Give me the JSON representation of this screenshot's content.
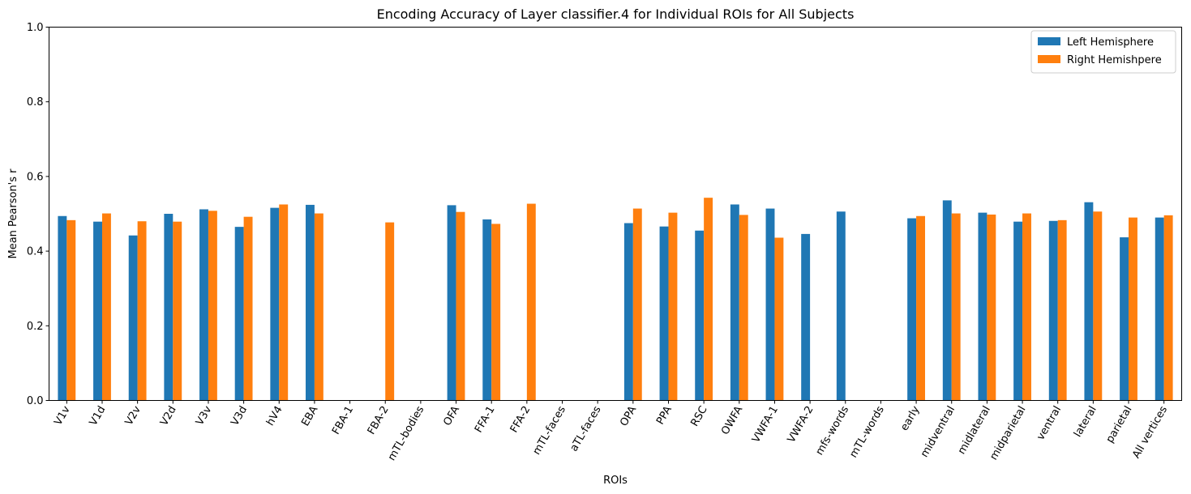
{
  "chart_data": {
    "type": "bar",
    "title": "Encoding Accuracy of Layer classifier.4 for Individual ROIs for All Subjects",
    "xlabel": "ROIs",
    "ylabel": "Mean Pearson's r",
    "ylim": [
      0,
      1.0
    ],
    "yticks": [
      "0.0",
      "0.2",
      "0.4",
      "0.6",
      "0.8",
      "1.0"
    ],
    "grid": false,
    "legend_position": "top-right",
    "categories": [
      "V1v",
      "V1d",
      "V2v",
      "V2d",
      "V3v",
      "V3d",
      "hV4",
      "EBA",
      "FBA-1",
      "FBA-2",
      "mTL-bodies",
      "OFA",
      "FFA-1",
      "FFA-2",
      "mTL-faces",
      "aTL-faces",
      "OPA",
      "PPA",
      "RSC",
      "OWFA",
      "VWFA-1",
      "VWFA-2",
      "mfs-words",
      "mTL-words",
      "early",
      "midventral",
      "midlateral",
      "midparietal",
      "ventral",
      "lateral",
      "parietal",
      "All vertices"
    ],
    "series": [
      {
        "name": "Left Hemisphere",
        "color": "#1f77b4",
        "values": [
          0.494,
          0.479,
          0.442,
          0.5,
          0.512,
          0.465,
          0.516,
          0.524,
          null,
          null,
          null,
          0.523,
          0.485,
          null,
          null,
          null,
          0.475,
          0.466,
          0.455,
          0.525,
          0.514,
          0.446,
          0.506,
          null,
          0.488,
          0.536,
          0.503,
          0.479,
          0.481,
          0.531,
          0.437,
          0.49
        ]
      },
      {
        "name": "Right Hemishpere",
        "color": "#ff7f0e",
        "values": [
          0.483,
          0.501,
          0.48,
          0.479,
          0.508,
          0.492,
          0.525,
          0.501,
          null,
          0.477,
          null,
          0.505,
          0.473,
          0.527,
          null,
          null,
          0.514,
          0.503,
          0.543,
          0.497,
          0.436,
          null,
          null,
          null,
          0.494,
          0.501,
          0.498,
          0.501,
          0.483,
          0.506,
          0.49,
          0.496
        ]
      }
    ]
  }
}
